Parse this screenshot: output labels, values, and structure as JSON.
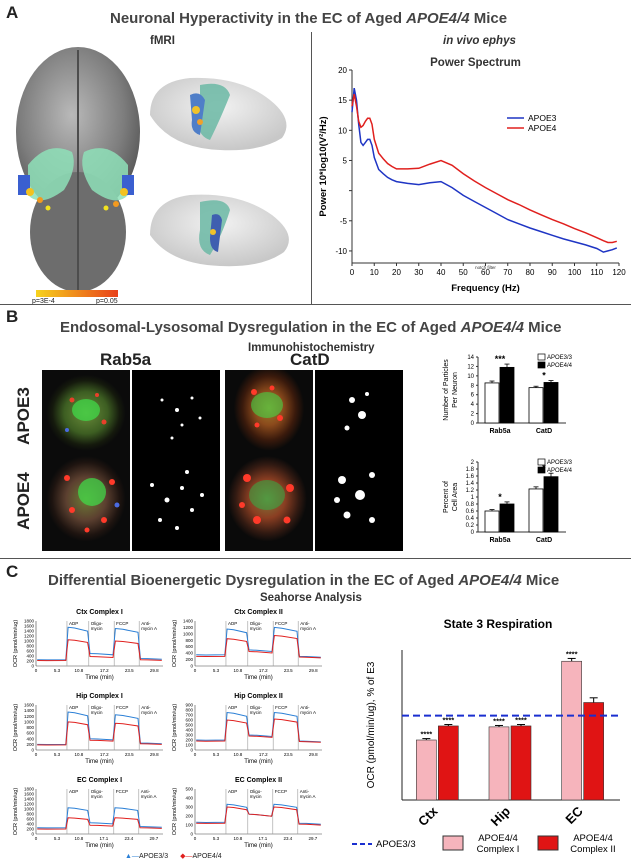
{
  "panel_a": {
    "label": "A",
    "title": "Neuronal Hyperactivity in the EC of Aged ",
    "title_italic": "APOE4/4",
    "title_end": " Mice",
    "fmri_title": "fMRI",
    "ephys_title": "in vivo ephys",
    "colorbar_low": "p=3E-4",
    "colorbar_high": "p=0.05"
  },
  "panel_b": {
    "label": "B",
    "title": "Endosomal-Lysosomal Dysregulation in the EC of Aged ",
    "title_italic": "APOE4/4",
    "title_end": " Mice",
    "subtitle": "Immunohistochemistry",
    "col1": "Rab5a",
    "col2": "CatD",
    "row1": "APOE3",
    "row2": "APOE4"
  },
  "panel_c": {
    "label": "C",
    "title": "Differential Bioenergetic Dysregulation in the EC of Aged ",
    "title_italic": "APOE4/4",
    "title_end": " Mice",
    "subtitle": "Seahorse Analysis",
    "bottom_legend": [
      "APOE3/3",
      "APOE4/4"
    ]
  },
  "colors": {
    "apoe3": "#1f35c4",
    "apoe4": "#e0201e",
    "pink": "#f6b4bc",
    "red": "#e01414",
    "dashed": "#1a2fd0"
  },
  "chart_data": [
    {
      "id": "power_spectrum",
      "type": "line",
      "title": "Power Spectrum",
      "xlabel": "Frequency (Hz)",
      "ylabel": "Power 10*log10(V²/Hz)",
      "xlim": [
        0,
        120
      ],
      "ylim": [
        -12,
        20
      ],
      "xticks": [
        0,
        10,
        20,
        30,
        40,
        50,
        60,
        70,
        80,
        90,
        100,
        110,
        120
      ],
      "xtick_labels": [
        "0",
        "10",
        "20",
        "30",
        "40",
        "50",
        "60",
        "70",
        "80",
        "90",
        "100",
        "110",
        "120"
      ],
      "notch_label": "notch filter",
      "yticks": [
        -10,
        -5,
        0,
        5,
        10,
        15,
        20
      ],
      "ytick_labels": [
        "-10",
        "-5",
        "",
        "5",
        "10",
        "15",
        "20"
      ],
      "legend": [
        "APOE3",
        "APOE4"
      ],
      "series": [
        {
          "name": "APOE3",
          "color": "#1f35c4",
          "x": [
            0,
            1,
            2,
            3,
            4,
            5,
            6,
            7,
            8,
            9,
            10,
            12,
            14,
            16,
            18,
            20,
            25,
            30,
            35,
            40,
            45,
            50,
            55,
            60,
            65,
            70,
            75,
            80,
            85,
            90,
            95,
            100,
            105,
            110,
            113,
            115,
            117,
            119
          ],
          "y": [
            13,
            17,
            15,
            11,
            8,
            7.5,
            8,
            8.5,
            8.5,
            7.5,
            5.5,
            3.5,
            2.8,
            2.2,
            1.8,
            1.5,
            1.2,
            1.0,
            1.3,
            1.5,
            0.5,
            -0.8,
            -1.8,
            -2.8,
            -3.8,
            -4.8,
            -5.5,
            -6.2,
            -6.8,
            -7.4,
            -8.0,
            -8.5,
            -9.0,
            -9.6,
            -10.2,
            -10.0,
            -9.8,
            -9.5
          ]
        },
        {
          "name": "APOE4",
          "color": "#e0201e",
          "x": [
            0,
            1,
            2,
            3,
            4,
            5,
            6,
            7,
            8,
            9,
            10,
            12,
            14,
            16,
            18,
            20,
            25,
            30,
            35,
            40,
            45,
            50,
            55,
            60,
            65,
            70,
            75,
            80,
            85,
            90,
            95,
            100,
            105,
            110,
            113,
            115,
            117,
            119
          ],
          "y": [
            14,
            16,
            14,
            11.5,
            10.5,
            10.8,
            11.5,
            12,
            12,
            11,
            8.5,
            6.2,
            5.3,
            4.5,
            4.0,
            3.6,
            3.6,
            3.7,
            4.4,
            5.0,
            4.2,
            2.8,
            1.6,
            0.5,
            -0.5,
            -1.5,
            -2.3,
            -3.2,
            -4.0,
            -4.8,
            -5.5,
            -6.3,
            -7.0,
            -7.8,
            -8.3,
            -8.6,
            -8.6,
            -8.4
          ]
        }
      ]
    },
    {
      "id": "particles_per_neuron",
      "type": "bar",
      "ylabel": "Number of Particles Per Neuron",
      "categories": [
        "Rab5a",
        "CatD"
      ],
      "ylim": [
        0,
        14
      ],
      "yticks": [
        0,
        2,
        4,
        6,
        8,
        10,
        12,
        14
      ],
      "legend": [
        "APOE3/3",
        "APOE4/4"
      ],
      "series": [
        {
          "name": "APOE3/3",
          "fill": "#ffffff",
          "values": [
            8.5,
            7.5
          ],
          "errors": [
            0.4,
            0.3
          ]
        },
        {
          "name": "APOE4/4",
          "fill": "#000000",
          "values": [
            11.8,
            8.6
          ],
          "errors": [
            0.7,
            0.4
          ]
        }
      ],
      "significance": [
        "***",
        "*"
      ]
    },
    {
      "id": "percent_cell_area",
      "type": "bar",
      "ylabel": "Percent of Cell Area",
      "categories": [
        "Rab5a",
        "CatD"
      ],
      "ylim": [
        0,
        2
      ],
      "yticks": [
        0,
        0.2,
        0.4,
        0.6,
        0.8,
        1.0,
        1.2,
        1.4,
        1.6,
        1.8,
        2.0
      ],
      "ytick_labels": [
        "0",
        "0.2",
        "0.4",
        "0.6",
        "0.8",
        "1",
        "1.2",
        "1.4",
        "1.6",
        "1.8",
        "2"
      ],
      "legend": [
        "APOE3/3",
        "APOE4/4"
      ],
      "series": [
        {
          "name": "APOE3/3",
          "fill": "#ffffff",
          "values": [
            0.6,
            1.23
          ],
          "errors": [
            0.04,
            0.06
          ]
        },
        {
          "name": "APOE4/4",
          "fill": "#000000",
          "values": [
            0.8,
            1.58
          ],
          "errors": [
            0.06,
            0.1
          ]
        }
      ],
      "significance": [
        "*",
        "*"
      ]
    },
    {
      "id": "seahorse_ctx_ci",
      "type": "line",
      "title": "Ctx Complex I",
      "ylabel": "OCR (pmol/min/ug)",
      "xlabel": "Time (min)",
      "ymax": 1800,
      "yticks": [
        0,
        200,
        400,
        600,
        800,
        1000,
        1200,
        1400,
        1600,
        1800
      ],
      "x": [
        0,
        5.3,
        10.8,
        17.2,
        23.5,
        29.8
      ],
      "xtick_labels": [
        "0",
        "5.3",
        "10.8",
        "17.2",
        "23.5",
        "29.8"
      ],
      "injections": [
        "ADP",
        "Oligo-\nmycin",
        "FCCP",
        "Anti-\nmycin A"
      ],
      "phase_levels": {
        "APOE3/3": [
          250,
          1550,
          500,
          1500,
          300
        ],
        "APOE4/4": [
          220,
          1050,
          380,
          1000,
          250
        ]
      }
    },
    {
      "id": "seahorse_ctx_cii",
      "type": "line",
      "title": "Ctx Complex II",
      "ylabel": "OCR (pmol/min/ug)",
      "xlabel": "Time (min)",
      "ymax": 1400,
      "yticks": [
        0,
        200,
        400,
        600,
        800,
        1000,
        1200,
        1400
      ],
      "x": [
        0,
        5.3,
        10.8,
        17.2,
        23.5,
        29.8
      ],
      "xtick_labels": [
        "0",
        "5.3",
        "10.8",
        "17.2",
        "23.5",
        "29.8"
      ],
      "injections": [
        "ADP",
        "Oligo-\nmycin",
        "FCCP",
        "Anti-\nmycin A"
      ],
      "phase_levels": {
        "APOE3/3": [
          350,
          1150,
          500,
          1200,
          300
        ],
        "APOE4/4": [
          300,
          850,
          450,
          950,
          280
        ]
      }
    },
    {
      "id": "seahorse_hip_ci",
      "type": "line",
      "title": "Hip Complex I",
      "ylabel": "OCR (pmol/min/ug)",
      "xlabel": "Time (min)",
      "ymax": 1600,
      "yticks": [
        0,
        200,
        400,
        600,
        800,
        1000,
        1200,
        1400,
        1600
      ],
      "x": [
        0,
        5.3,
        10.8,
        17.2,
        23.5,
        29.8
      ],
      "xtick_labels": [
        "0",
        "5.3",
        "10.8",
        "17.2",
        "23.5",
        "29.8"
      ],
      "injections": [
        "ADP",
        "Oligo-\nmycin",
        "FCCP",
        "Anti-\nmycin A"
      ],
      "phase_levels": {
        "APOE3/3": [
          200,
          1350,
          400,
          1250,
          250
        ],
        "APOE4/4": [
          180,
          1000,
          350,
          950,
          220
        ]
      }
    },
    {
      "id": "seahorse_hip_cii",
      "type": "line",
      "title": "Hip Complex II",
      "ylabel": "OCR (pmol/min/ug)",
      "xlabel": "Time (min)",
      "ymax": 900,
      "yticks": [
        0,
        100,
        200,
        300,
        400,
        500,
        600,
        700,
        800,
        900
      ],
      "x": [
        0,
        5.3,
        10.8,
        17.2,
        23.5,
        29.8
      ],
      "xtick_labels": [
        "0",
        "5.3",
        "10.8",
        "17.2",
        "23.5",
        "29.8"
      ],
      "injections": [
        "ADP",
        "Oligo-\nmycin",
        "FCCP",
        "Anti-\nmycin A"
      ],
      "phase_levels": {
        "APOE3/3": [
          200,
          750,
          300,
          750,
          180
        ],
        "APOE4/4": [
          180,
          600,
          280,
          620,
          170
        ]
      }
    },
    {
      "id": "seahorse_ec_ci",
      "type": "line",
      "title": "EC Complex I",
      "ylabel": "OCR (pmol/min/ug)",
      "xlabel": "Time (min)",
      "ymax": 1800,
      "yticks": [
        0,
        200,
        400,
        600,
        800,
        1000,
        1200,
        1400,
        1600,
        1800
      ],
      "x": [
        0,
        5.3,
        10.8,
        17.1,
        23.4,
        29.7
      ],
      "xtick_labels": [
        "0",
        "5.3",
        "10.8",
        "17.1",
        "23.4",
        "29.7"
      ],
      "injections": [
        "ADP",
        "Oligo-\nmycin",
        "FCCP",
        "Anti-\nmycin A"
      ],
      "phase_levels": {
        "APOE3/3": [
          250,
          1050,
          450,
          1050,
          300
        ],
        "APOE4/4": [
          200,
          650,
          350,
          650,
          250
        ]
      }
    },
    {
      "id": "seahorse_ec_cii",
      "type": "line",
      "title": "EC Complex II",
      "ylabel": "OCR (pmol/min/ug)",
      "xlabel": "Time (min)",
      "ymax": 500,
      "yticks": [
        0,
        100,
        200,
        300,
        400,
        500
      ],
      "x": [
        0,
        5.3,
        10.8,
        17.1,
        23.4,
        29.7
      ],
      "xtick_labels": [
        "0",
        "5.3",
        "10.8",
        "17.1",
        "23.4",
        "29.7"
      ],
      "injections": [
        "ADP",
        "Oligo-\nmycin",
        "FCCP",
        "Anti-\nmycin A"
      ],
      "phase_levels": {
        "APOE3/3": [
          130,
          330,
          220,
          330,
          120
        ],
        "APOE4/4": [
          120,
          300,
          220,
          300,
          110
        ]
      }
    },
    {
      "id": "state3_respiration",
      "type": "bar",
      "title": "State 3 Respiration",
      "ylabel": "OCR (pmol/min/ug),  % of E3",
      "categories": [
        "Ctx",
        "Hip",
        "EC"
      ],
      "ylim": [
        0,
        160
      ],
      "reference_line": 90,
      "series": [
        {
          "name": "APOE4/4 Complex I",
          "fill": "#f6b4bc",
          "values": [
            64,
            78,
            148
          ],
          "errors": [
            1.5,
            1.5,
            3
          ]
        },
        {
          "name": "APOE4/4 Complex II",
          "fill": "#e01414",
          "values": [
            79,
            79,
            104
          ],
          "errors": [
            1.5,
            1.5,
            5
          ]
        }
      ],
      "significance": [
        [
          "****",
          "****"
        ],
        [
          "****",
          "****"
        ],
        [
          "****",
          ""
        ]
      ],
      "legend": [
        "APOE3/3",
        "APOE4/4 Complex I",
        "APOE4/4 Complex II"
      ]
    }
  ]
}
